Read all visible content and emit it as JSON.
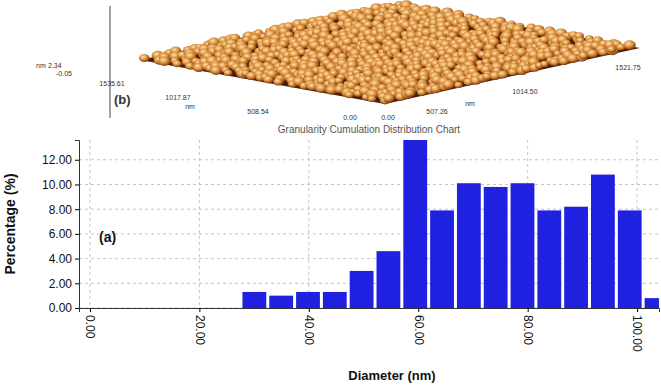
{
  "chart_data": {
    "type": "histogram",
    "title": "Granularity Cumulation Distribution Chart",
    "x_label": "Diameter (nm)",
    "y_label": "Percentage (%)",
    "annotations": [
      "(a)"
    ],
    "bins": [
      27.6,
      32.5,
      37.4,
      42.3,
      47.2,
      52.1,
      57.0,
      61.9,
      66.8,
      71.7,
      76.6,
      81.5,
      86.4,
      91.3,
      96.2,
      101.1,
      106.0
    ],
    "values": [
      1.3,
      1.0,
      1.3,
      1.3,
      3.0,
      4.6,
      13.6,
      7.9,
      10.1,
      9.8,
      10.1,
      7.9,
      8.2,
      10.8,
      7.9,
      0.8
    ],
    "color": "#2020e0",
    "xlim": [
      -2,
      104
    ],
    "xticks": [
      {
        "value": 0,
        "label": "0.00"
      },
      {
        "value": 20,
        "label": "20.00"
      },
      {
        "value": 40,
        "label": "40.00"
      },
      {
        "value": 60,
        "label": "60.00"
      },
      {
        "value": 80,
        "label": "80.00"
      },
      {
        "value": 100,
        "label": "100.00"
      }
    ],
    "ylim": [
      0,
      13.6
    ],
    "yticks": [
      {
        "value": 0,
        "label": "0.00"
      },
      {
        "value": 2,
        "label": "2.00"
      },
      {
        "value": 4,
        "label": "4.00"
      },
      {
        "value": 6,
        "label": "6.00"
      },
      {
        "value": 8,
        "label": "8.00"
      },
      {
        "value": 10,
        "label": "10.00"
      },
      {
        "value": 12,
        "label": "12.00"
      }
    ],
    "grid": true
  },
  "afm_image": {
    "panel_label": "(b)",
    "z_unit": "nm",
    "z_labels": [
      "2.34",
      "-0.05"
    ],
    "y_unit": "nm",
    "y_ticks": [
      "0.00",
      "508.54",
      "1017.87",
      "1535.61"
    ],
    "x_unit": "nm",
    "x_ticks": [
      "0.00",
      "507.26",
      "1014.50",
      "1521.75"
    ]
  }
}
